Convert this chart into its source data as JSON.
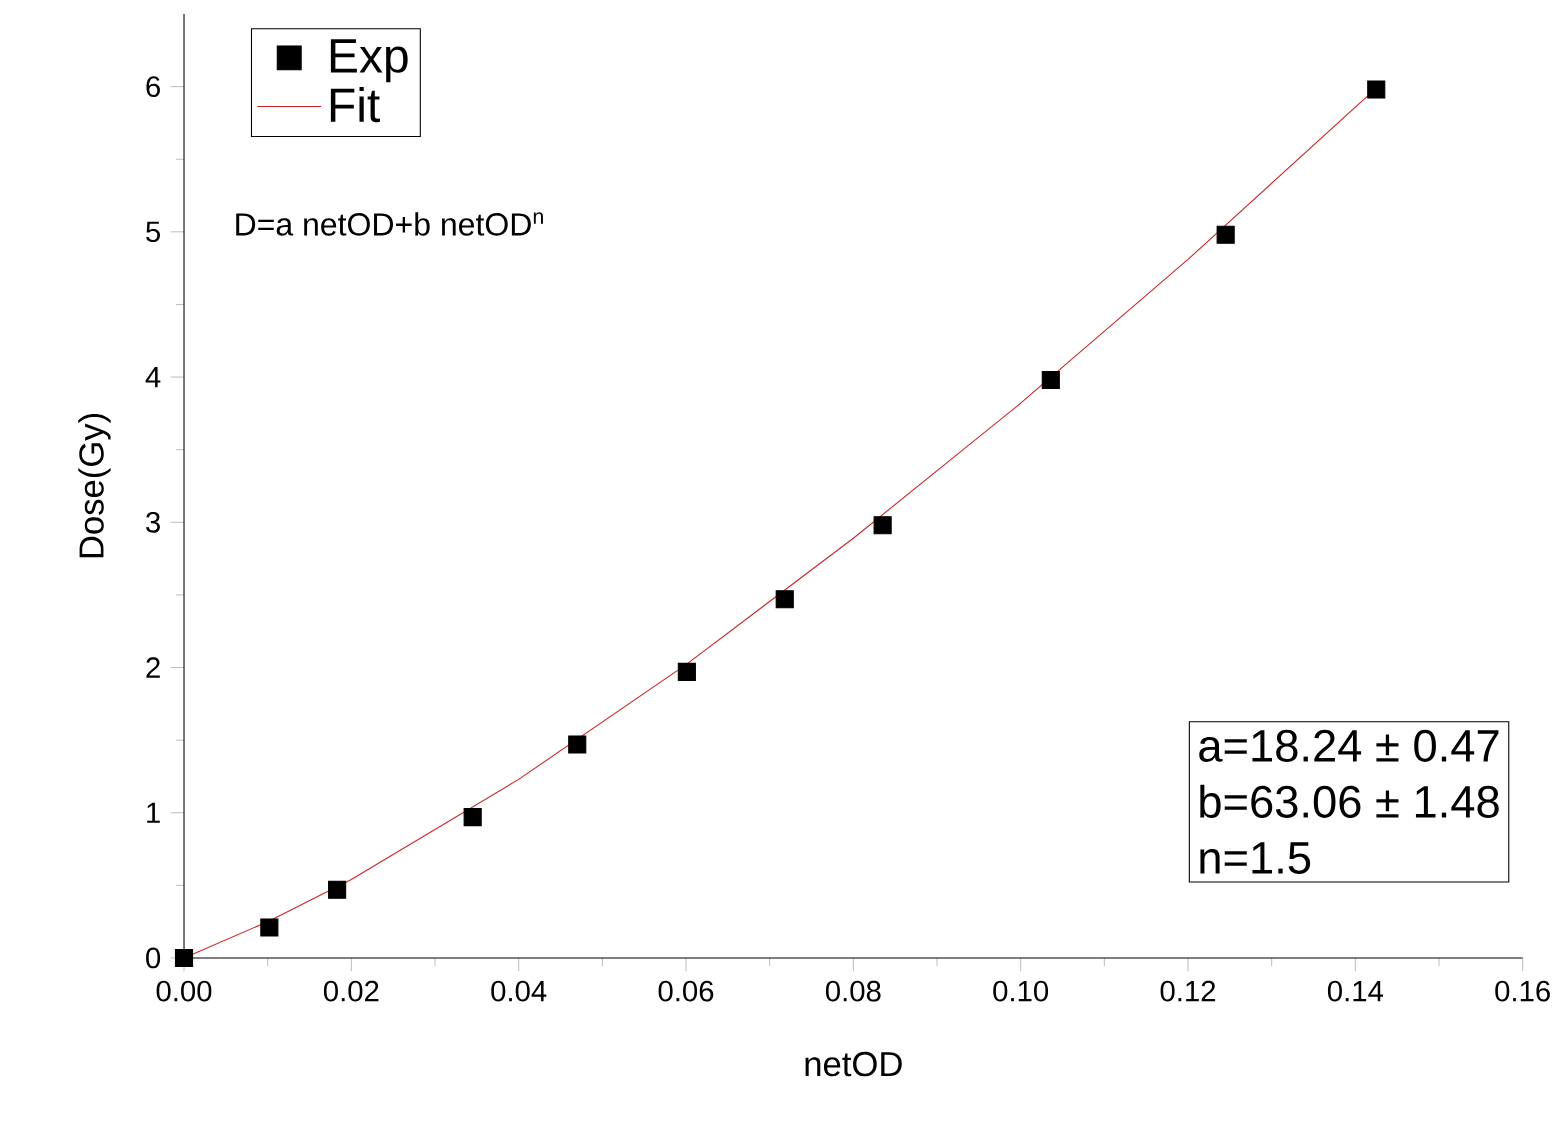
{
  "chart_data": {
    "type": "scatter",
    "xlabel": "netOD",
    "ylabel": "Dose(Gy)",
    "xlim": [
      0,
      0.16
    ],
    "ylim": [
      0,
      6.5
    ],
    "xticks": [
      {
        "value": 0,
        "label": "0.00"
      },
      {
        "value": 0.02,
        "label": "0.02"
      },
      {
        "value": 0.04,
        "label": "0.04"
      },
      {
        "value": 0.06,
        "label": "0.06"
      },
      {
        "value": 0.08,
        "label": "0.08"
      },
      {
        "value": 0.1,
        "label": "0.10"
      },
      {
        "value": 0.12,
        "label": "0.12"
      },
      {
        "value": 0.14,
        "label": "0.14"
      },
      {
        "value": 0.16,
        "label": "0.16"
      }
    ],
    "yticks": [
      0,
      1,
      2,
      3,
      4,
      5,
      6
    ],
    "legend": "top left",
    "grid": false,
    "series": [
      {
        "name": "Exp",
        "marker": "square",
        "color": "#000000",
        "x": [
          0,
          0.0102,
          0.0183,
          0.0345,
          0.047,
          0.0601,
          0.0718,
          0.0835,
          0.1036,
          0.1245,
          0.1425
        ],
        "values": [
          0,
          0.21,
          0.47,
          0.97,
          1.47,
          1.97,
          2.47,
          2.98,
          3.98,
          4.98,
          5.98
        ]
      },
      {
        "name": "Fit",
        "type": "line",
        "marker": "none",
        "color": "#cc2222",
        "x": [
          0,
          0.01,
          0.02,
          0.04,
          0.06,
          0.08,
          0.1,
          0.12,
          0.1425
        ],
        "values": [
          0,
          0.25,
          0.54,
          1.23,
          2.02,
          2.89,
          3.82,
          4.81,
          5.99
        ]
      }
    ],
    "annotations": [
      "D=a netOD+b netOD$^{n}$",
      "a=18.24 ± 0.47",
      "b=63.06 ± 1.48",
      "n=1.5"
    ]
  }
}
